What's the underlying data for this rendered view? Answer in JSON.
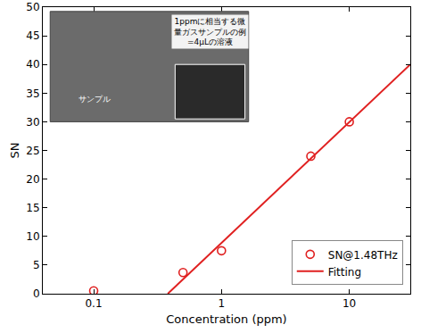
{
  "chart_data": {
    "type": "scatter",
    "x_label": "Concentration (ppm)",
    "y_label": "SN",
    "log": "x",
    "xlim": [
      0.04,
      30
    ],
    "ylim": [
      0,
      50
    ],
    "xticks": [
      0.1,
      1,
      10
    ],
    "yticks": [
      0,
      5,
      10,
      15,
      20,
      25,
      30,
      35,
      40,
      45,
      50
    ],
    "grid": false,
    "legend": "lower right",
    "series": [
      {
        "name": "SN@1.48THz",
        "type": "scatter",
        "marker": "circle-open",
        "color": "#e02020",
        "x": [
          0.1,
          0.5,
          1,
          5,
          10
        ],
        "values": [
          0.5,
          3.7,
          7.5,
          24,
          30
        ]
      },
      {
        "name": "Fitting",
        "type": "line",
        "line_style": "solid",
        "color": "#e02020",
        "x": [
          0.38,
          30
        ],
        "values": [
          0,
          40
        ]
      }
    ],
    "annotations": [
      {
        "lines": [
          "1ppmに相当する微",
          "量ガスサンプルの例",
          "=4μLの溶液"
        ]
      },
      {
        "lines": [
          "サンプル"
        ]
      }
    ]
  }
}
